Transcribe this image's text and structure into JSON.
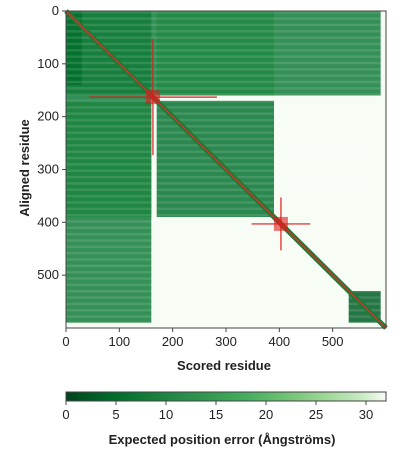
{
  "chart_data": [
    {
      "type": "heatmap",
      "title": "",
      "xlabel": "Scored residue",
      "ylabel": "Aligned residue",
      "xlim": [
        0,
        600
      ],
      "ylim": [
        600,
        0
      ],
      "x_ticks": [
        0,
        100,
        200,
        300,
        400,
        500
      ],
      "y_ticks": [
        0,
        100,
        200,
        300,
        400,
        500
      ],
      "colormap": [
        "#00441b",
        "#f7fcf5"
      ],
      "diagonal_color": "#c0392b",
      "blocks": [
        {
          "x": [
            0,
            590
          ],
          "y": [
            0,
            160
          ],
          "value": 8
        },
        {
          "x": [
            0,
            160
          ],
          "y": [
            0,
            590
          ],
          "value": 8
        },
        {
          "x": [
            170,
            390
          ],
          "y": [
            170,
            390
          ],
          "value": 6
        },
        {
          "x": [
            0,
            160
          ],
          "y": [
            170,
            390
          ],
          "value": 10
        },
        {
          "x": [
            170,
            390
          ],
          "y": [
            0,
            160
          ],
          "value": 11
        },
        {
          "x": [
            0,
            30
          ],
          "y": [
            0,
            140
          ],
          "value": 5
        },
        {
          "x": [
            530,
            590
          ],
          "y": [
            530,
            590
          ],
          "value": 3
        }
      ],
      "domain_markers": [
        {
          "x": 163,
          "y": 163,
          "half_x": 120,
          "half_y": 110
        },
        {
          "x": 403,
          "y": 403,
          "half_x": 55,
          "half_y": 50
        }
      ]
    },
    {
      "type": "colorbar",
      "xlabel": "Expected position error (Ångströms)",
      "range": [
        0,
        32
      ],
      "ticks": [
        0,
        5,
        10,
        15,
        20,
        25,
        30
      ],
      "colormap": [
        "#00441b",
        "#f7fcf5"
      ]
    }
  ]
}
